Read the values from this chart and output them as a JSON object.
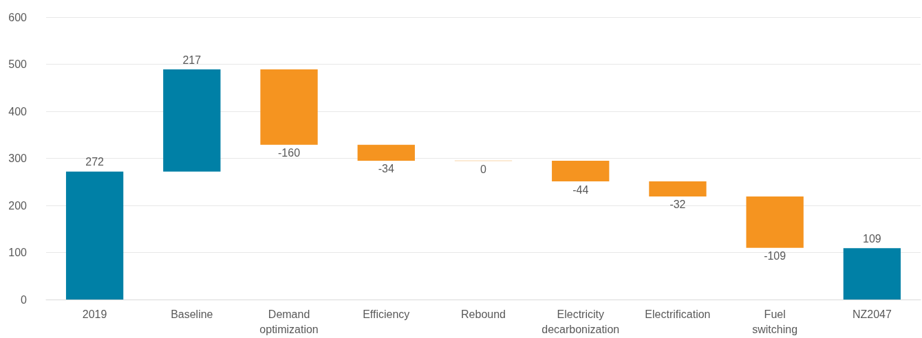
{
  "chart_data": {
    "type": "bar",
    "categories": [
      "2019",
      "Baseline",
      "Demand optimization",
      "Efficiency",
      "Rebound",
      "Electricity decarbonization",
      "Electrification",
      "Fuel switching",
      "NZ2047"
    ],
    "values": [
      272,
      217,
      -160,
      -34,
      0,
      -44,
      -32,
      -109,
      109
    ],
    "base": [
      0,
      272,
      489,
      329,
      295,
      295,
      251,
      219,
      0
    ],
    "colors": [
      "#0080a6",
      "#0080a6",
      "#f59420",
      "#f59420",
      "#fbe3c4",
      "#f59420",
      "#f59420",
      "#f59420",
      "#0080a6"
    ],
    "ylim": [
      0,
      600
    ],
    "yticks": [
      0,
      100,
      200,
      300,
      400,
      500,
      600
    ],
    "grid": "y",
    "data_labels": true
  }
}
